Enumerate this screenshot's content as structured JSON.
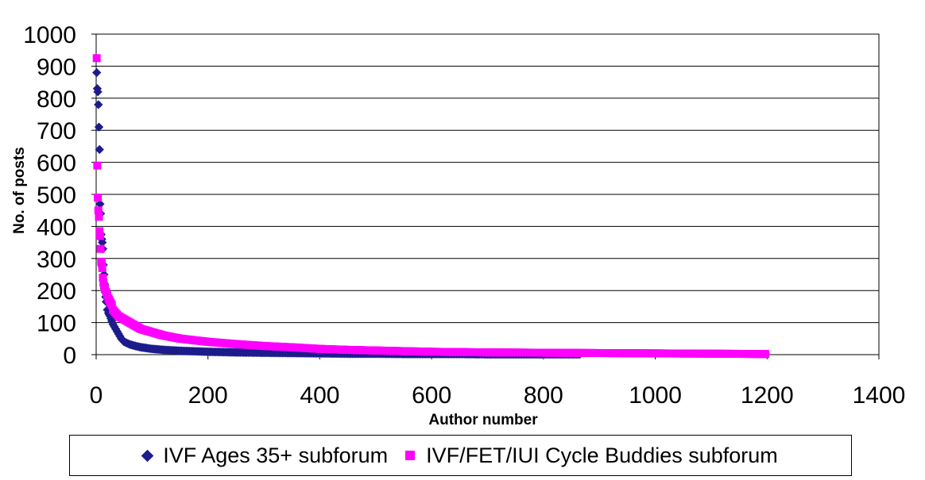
{
  "chart_data": {
    "type": "scatter",
    "title": "",
    "xlabel": "Author number",
    "ylabel": "No. of posts",
    "xlim": [
      0,
      1400
    ],
    "ylim": [
      0,
      1000
    ],
    "x_ticks": [
      "0",
      "200",
      "400",
      "600",
      "800",
      "1000",
      "1200",
      "1400"
    ],
    "y_ticks": [
      "0",
      "100",
      "200",
      "300",
      "400",
      "500",
      "600",
      "700",
      "800",
      "900",
      "1000"
    ],
    "grid": "horizontal",
    "legend_position": "bottom",
    "series": [
      {
        "name": "IVF Ages 35+ subforum",
        "marker": "diamond",
        "color": "#1c1c8c",
        "x": [
          1,
          2,
          3,
          4,
          5,
          6,
          7,
          8,
          9,
          10,
          11,
          12,
          13,
          14,
          15,
          16,
          17,
          18,
          20,
          22,
          25,
          28,
          30,
          35,
          40,
          45,
          50,
          60,
          70,
          80,
          100,
          120,
          150,
          200,
          250,
          300,
          350,
          400,
          450,
          500,
          550,
          600,
          650,
          700,
          750,
          800,
          865
        ],
        "y": [
          880,
          830,
          820,
          780,
          710,
          640,
          470,
          440,
          375,
          360,
          350,
          330,
          280,
          250,
          220,
          195,
          180,
          165,
          140,
          130,
          120,
          105,
          95,
          80,
          65,
          50,
          40,
          32,
          27,
          23,
          18,
          15,
          12,
          9,
          7,
          6,
          5,
          4,
          3,
          3,
          2,
          2,
          2,
          1,
          1,
          1,
          1
        ]
      },
      {
        "name": "IVF/FET/IUI Cycle Buddies subforum",
        "marker": "square",
        "color": "#ff00ff",
        "x": [
          1,
          2,
          3,
          4,
          5,
          6,
          7,
          8,
          9,
          10,
          11,
          12,
          13,
          14,
          16,
          18,
          20,
          22,
          25,
          28,
          30,
          35,
          40,
          50,
          60,
          70,
          80,
          100,
          120,
          150,
          200,
          250,
          300,
          350,
          400,
          450,
          500,
          550,
          600,
          700,
          800,
          900,
          1000,
          1100,
          1197
        ],
        "y": [
          925,
          590,
          490,
          450,
          430,
          385,
          370,
          330,
          290,
          285,
          270,
          240,
          225,
          215,
          205,
          195,
          185,
          175,
          165,
          155,
          140,
          130,
          120,
          110,
          100,
          90,
          80,
          70,
          60,
          50,
          40,
          33,
          27,
          23,
          18,
          15,
          13,
          11,
          9,
          7,
          6,
          5,
          4,
          3,
          2
        ]
      }
    ]
  }
}
